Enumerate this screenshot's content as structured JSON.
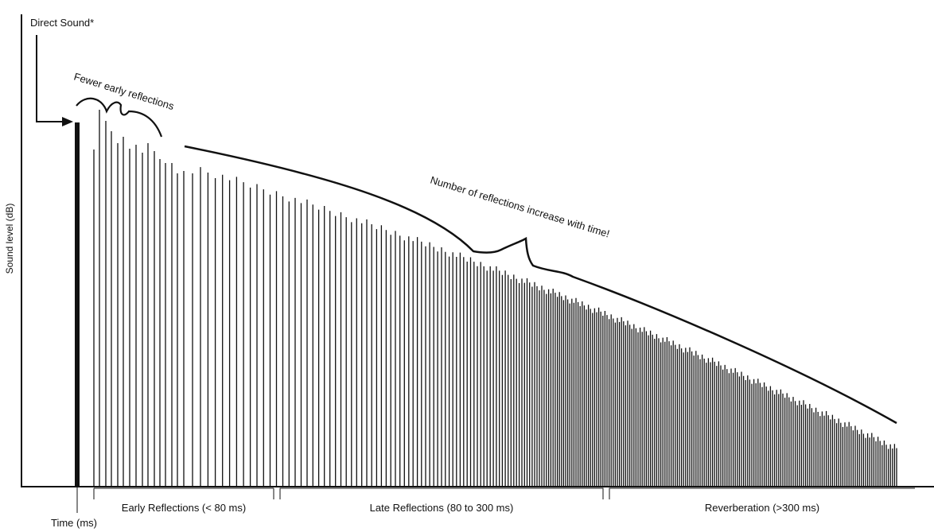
{
  "labels": {
    "direct_sound": "Direct Sound*",
    "fewer_early": "Fewer early reflections",
    "number_reflections": "Number of reflections increase with time!",
    "ylabel": "Sound level (dB)",
    "xlabel": "Time (ms)"
  },
  "regions": [
    {
      "label": "Early Reflections (< 80 ms)"
    },
    {
      "label": "Late Reflections (80 to 300 ms)"
    },
    {
      "label": "Reverberation (>300 ms)"
    }
  ],
  "colors": {
    "ink": "#111111",
    "background": "#ffffff"
  }
}
